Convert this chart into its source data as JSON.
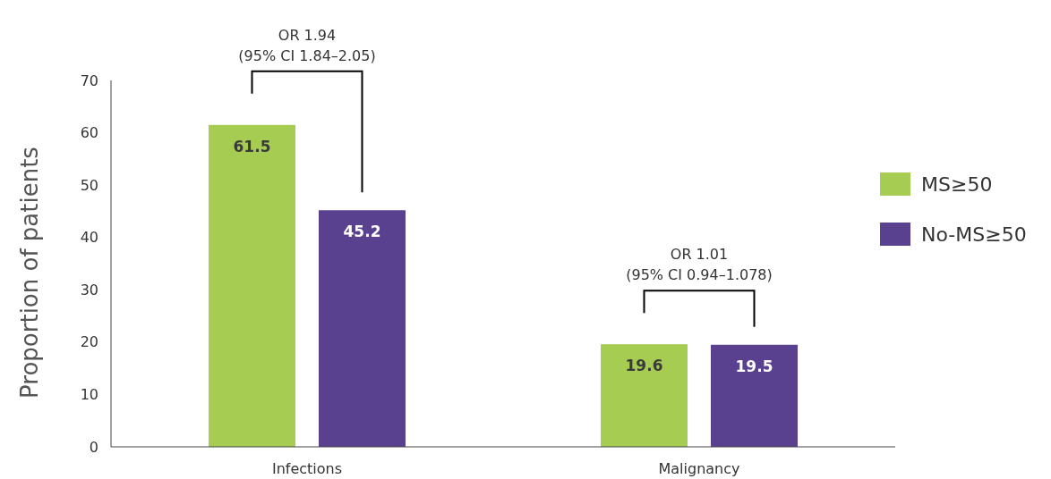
{
  "chart_data": {
    "type": "bar",
    "ylabel": "Proportion of patients",
    "categories": [
      "Infections",
      "Malignancy"
    ],
    "series": [
      {
        "name": "MS≥50",
        "color": "#a6cc52",
        "values": [
          61.5,
          19.6
        ]
      },
      {
        "name": "No-MS≥50",
        "color": "#5a418f",
        "values": [
          45.2,
          19.5
        ]
      }
    ],
    "ylim": [
      0,
      70
    ],
    "yticks": [
      0,
      10,
      20,
      30,
      40,
      50,
      60,
      70
    ],
    "grid": false,
    "legend": "right",
    "data_labels": true,
    "annotations": [
      "OR 1.94\n(95% CI 1.84–2.05)",
      "OR 1.01\n(95% CI 0.94–1.078)"
    ]
  }
}
